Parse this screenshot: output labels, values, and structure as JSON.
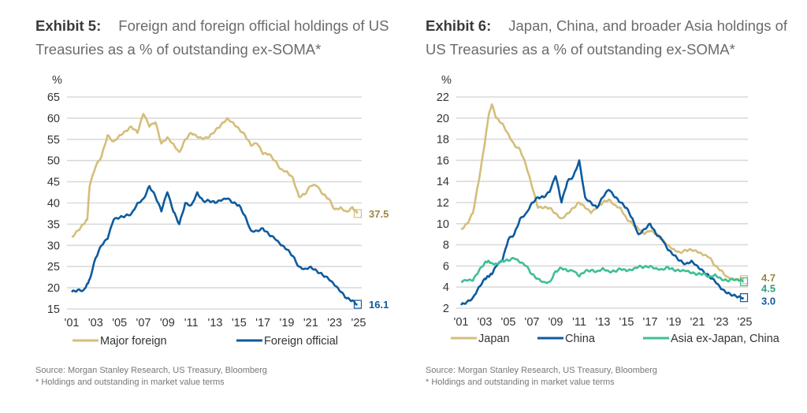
{
  "exhibit5": {
    "exhibit_label": "Exhibit 5:",
    "title": "Foreign and foreign official holdings of US Treasuries as a % of outstanding ex-SOMA*",
    "source": "Source: Morgan Stanley Research, US Treasury, Bloomberg",
    "footnote": "* Holdings and outstanding in market value terms"
  },
  "exhibit6": {
    "exhibit_label": "Exhibit 6:",
    "title": "Japan, China, and broader Asia holdings of US Treasuries as a % of outstanding ex-SOMA*",
    "source": "Source: Morgan Stanley Research, US Treasury, Bloomberg",
    "footnote": "* Holdings and outstanding in market value terms"
  },
  "chart_data": [
    {
      "type": "line",
      "title": "Foreign and foreign official holdings of US Treasuries as a % of outstanding ex-SOMA*",
      "ylabel": "%",
      "xlabel": "",
      "ylim": [
        15,
        65
      ],
      "yticks": [
        15,
        20,
        25,
        30,
        35,
        40,
        45,
        50,
        55,
        60,
        65
      ],
      "xlim": [
        2001,
        2025
      ],
      "xticks": [
        "'01",
        "'03",
        "'05",
        "'07",
        "'09",
        "'11",
        "'13",
        "'15",
        "'17",
        "'19",
        "'21",
        "'23",
        "'25"
      ],
      "xtick_values": [
        2001,
        2003,
        2005,
        2007,
        2009,
        2011,
        2013,
        2015,
        2017,
        2019,
        2021,
        2023,
        2025
      ],
      "grid": true,
      "legend": "bottom",
      "x": [
        2001.0,
        2001.5,
        2002.0,
        2002.3,
        2002.5,
        2003.0,
        2003.5,
        2004.0,
        2004.5,
        2005.0,
        2005.5,
        2006.0,
        2006.5,
        2007.0,
        2007.5,
        2008.0,
        2008.5,
        2009.0,
        2009.5,
        2010.0,
        2010.5,
        2011.0,
        2011.5,
        2012.0,
        2012.5,
        2013.0,
        2013.5,
        2014.0,
        2014.5,
        2015.0,
        2015.5,
        2016.0,
        2016.5,
        2017.0,
        2017.5,
        2018.0,
        2018.5,
        2019.0,
        2019.5,
        2020.0,
        2020.5,
        2021.0,
        2021.5,
        2022.0,
        2022.5,
        2023.0,
        2023.5,
        2024.0,
        2024.5,
        2024.9
      ],
      "series": [
        {
          "name": "Major foreign",
          "color": "#d4be7a",
          "end_label": "37.5",
          "values": [
            32.0,
            33.5,
            35.0,
            36.0,
            44.0,
            48.5,
            51.0,
            56.0,
            54.5,
            56.0,
            57.0,
            58.0,
            56.5,
            61.0,
            58.0,
            59.0,
            54.0,
            55.5,
            54.0,
            52.0,
            55.0,
            56.5,
            55.5,
            55.0,
            55.5,
            57.0,
            58.5,
            60.0,
            59.0,
            57.5,
            56.0,
            53.5,
            54.0,
            51.5,
            51.5,
            50.0,
            48.0,
            47.5,
            46.0,
            41.5,
            42.0,
            44.0,
            44.0,
            42.0,
            41.0,
            38.5,
            39.0,
            38.0,
            39.0,
            37.5
          ]
        },
        {
          "name": "Foreign official",
          "color": "#0e5a9e",
          "end_label": "16.1",
          "values": [
            19.0,
            19.5,
            19.5,
            21.0,
            22.0,
            27.0,
            30.0,
            31.5,
            36.0,
            36.5,
            37.0,
            37.5,
            40.0,
            41.0,
            44.0,
            41.5,
            38.0,
            42.5,
            38.0,
            35.0,
            40.0,
            39.5,
            42.5,
            40.5,
            40.5,
            40.0,
            40.5,
            41.0,
            40.0,
            39.5,
            37.0,
            33.5,
            33.5,
            34.0,
            32.5,
            31.5,
            30.0,
            29.0,
            27.5,
            25.0,
            24.5,
            25.0,
            24.0,
            23.0,
            22.0,
            20.5,
            19.0,
            17.5,
            17.0,
            16.1
          ]
        }
      ]
    },
    {
      "type": "line",
      "title": "Japan, China, and broader Asia holdings of US Treasuries as a % of outstanding ex-SOMA*",
      "ylabel": "%",
      "xlabel": "",
      "ylim": [
        2,
        22
      ],
      "yticks": [
        2,
        4,
        6,
        8,
        10,
        12,
        14,
        16,
        18,
        20,
        22
      ],
      "xlim": [
        2001,
        2025
      ],
      "xticks": [
        "'01",
        "'03",
        "'05",
        "'07",
        "'09",
        "'11",
        "'13",
        "'15",
        "'17",
        "'19",
        "'21",
        "'23",
        "'25"
      ],
      "xtick_values": [
        2001,
        2003,
        2005,
        2007,
        2009,
        2011,
        2013,
        2015,
        2017,
        2019,
        2021,
        2023,
        2025
      ],
      "grid": true,
      "legend": "bottom",
      "x": [
        2001.0,
        2001.5,
        2002.0,
        2002.5,
        2003.0,
        2003.3,
        2003.6,
        2004.0,
        2004.5,
        2005.0,
        2005.5,
        2006.0,
        2006.5,
        2007.0,
        2007.5,
        2008.0,
        2008.5,
        2009.0,
        2009.5,
        2010.0,
        2010.5,
        2011.0,
        2011.5,
        2012.0,
        2012.5,
        2013.0,
        2013.5,
        2014.0,
        2014.5,
        2015.0,
        2015.5,
        2016.0,
        2016.5,
        2017.0,
        2017.5,
        2018.0,
        2018.5,
        2019.0,
        2019.5,
        2020.0,
        2020.5,
        2021.0,
        2021.5,
        2022.0,
        2022.5,
        2023.0,
        2023.5,
        2024.0,
        2024.5,
        2024.9
      ],
      "series": [
        {
          "name": "Japan",
          "color": "#d4be7a",
          "end_label": "4.7",
          "values": [
            9.5,
            10.0,
            11.0,
            14.0,
            17.5,
            20.0,
            21.3,
            20.0,
            19.5,
            18.5,
            17.5,
            17.0,
            15.5,
            13.5,
            11.5,
            11.5,
            11.5,
            11.0,
            10.5,
            11.0,
            11.5,
            12.0,
            11.5,
            11.0,
            11.5,
            12.0,
            12.3,
            11.8,
            11.5,
            10.5,
            10.0,
            9.5,
            9.0,
            9.3,
            9.0,
            8.5,
            8.0,
            7.6,
            7.3,
            7.5,
            7.5,
            7.3,
            7.0,
            6.8,
            6.0,
            5.6,
            5.0,
            4.8,
            4.7,
            4.7
          ]
        },
        {
          "name": "China",
          "color": "#0e5a9e",
          "end_label": "3.0",
          "values": [
            2.3,
            2.6,
            3.0,
            4.0,
            4.8,
            5.0,
            5.2,
            6.0,
            6.5,
            8.5,
            9.0,
            10.5,
            11.0,
            12.0,
            12.5,
            12.5,
            13.0,
            14.5,
            12.0,
            14.0,
            14.5,
            16.0,
            12.5,
            12.0,
            11.5,
            12.5,
            13.2,
            12.5,
            12.0,
            11.5,
            10.5,
            9.0,
            9.5,
            10.0,
            9.0,
            8.5,
            7.5,
            7.0,
            6.5,
            6.2,
            6.5,
            6.0,
            5.5,
            5.0,
            4.5,
            3.8,
            3.4,
            3.2,
            3.1,
            3.0
          ]
        },
        {
          "name": "Asia ex-Japan, China",
          "color": "#3dbf95",
          "end_label": "4.5",
          "values": [
            4.5,
            4.6,
            4.6,
            5.5,
            6.3,
            6.5,
            6.3,
            6.2,
            6.5,
            6.5,
            6.7,
            6.3,
            6.0,
            5.2,
            4.8,
            4.5,
            4.5,
            5.5,
            5.8,
            5.5,
            5.5,
            5.0,
            5.5,
            5.6,
            5.5,
            5.8,
            5.5,
            5.5,
            5.7,
            5.5,
            5.6,
            5.9,
            5.9,
            6.0,
            5.8,
            5.7,
            5.9,
            5.6,
            5.5,
            5.5,
            5.3,
            5.2,
            5.3,
            5.0,
            5.2,
            4.8,
            4.6,
            4.7,
            4.6,
            4.5
          ]
        }
      ]
    }
  ]
}
